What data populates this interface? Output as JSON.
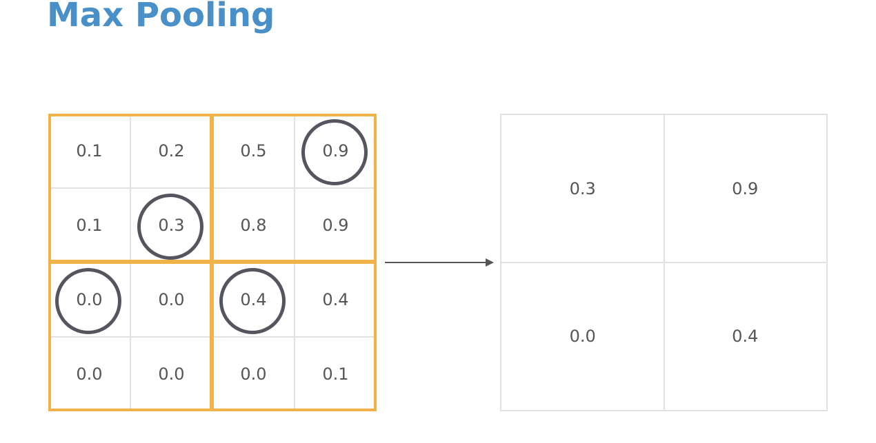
{
  "title": "Max Pooling",
  "input": {
    "rows": [
      [
        "0.1",
        "0.2",
        "0.5",
        "0.9"
      ],
      [
        "0.1",
        "0.3",
        "0.8",
        "0.9"
      ],
      [
        "0.0",
        "0.0",
        "0.4",
        "0.4"
      ],
      [
        "0.0",
        "0.0",
        "0.0",
        "0.1"
      ]
    ],
    "highlighted": [
      [
        0,
        3
      ],
      [
        1,
        1
      ],
      [
        2,
        0
      ],
      [
        2,
        2
      ]
    ]
  },
  "output": {
    "rows": [
      [
        "0.3",
        "0.9"
      ],
      [
        "0.0",
        "0.4"
      ]
    ]
  },
  "colors": {
    "title": "#4a90c8",
    "pool_border": "#f2b24a",
    "circle": "#555560",
    "gridline": "#e1e1e1",
    "text": "#555555",
    "arrow": "#555555"
  }
}
